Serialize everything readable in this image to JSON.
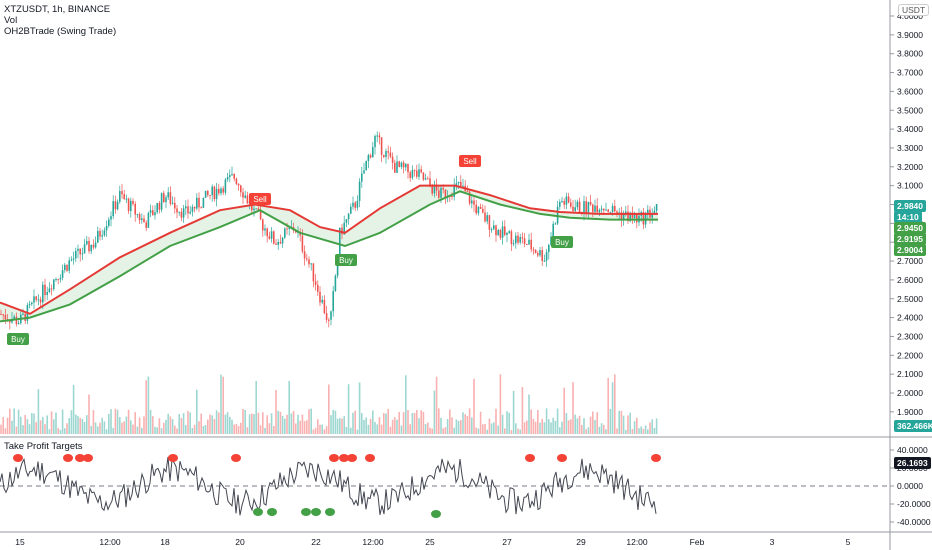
{
  "legend": {
    "symbol_line": "XTZUSDT, 1h, BINANCE",
    "volume_label": "Vol",
    "indicator_label": "OH2BTrade (Swing Trade)"
  },
  "sub_legend": "Take Profit Targets",
  "currency_badge": "USDT",
  "price_axis": {
    "ticks": [
      "4.0000",
      "3.9000",
      "3.8000",
      "3.7000",
      "3.6000",
      "3.5000",
      "3.4000",
      "3.3000",
      "3.2000",
      "3.1000",
      "3.0000",
      "2.9000",
      "2.8000",
      "2.7000",
      "2.6000",
      "2.5000",
      "2.4000",
      "2.3000",
      "2.2000",
      "2.1000",
      "2.0000",
      "1.9000"
    ]
  },
  "oscillator_axis": {
    "ticks": [
      "40.0000",
      "20.0000",
      "0.0000",
      "-20.0000",
      "-40.0000"
    ]
  },
  "time_axis": {
    "labels": [
      "15",
      "12:00",
      "18",
      "20",
      "22",
      "12:00",
      "25",
      "27",
      "29",
      "12:00",
      "Feb",
      "3",
      "5"
    ]
  },
  "price_tags": [
    {
      "text": "2.9840",
      "color": "#26a69a"
    },
    {
      "text": "14:10",
      "color": "#26a69a"
    },
    {
      "text": "2.9450",
      "color": "#26a69a"
    },
    {
      "text": "2.9195",
      "color": "#26a69a"
    },
    {
      "text": "2.9004",
      "color": "#26a69a"
    },
    {
      "text": "362.466K",
      "color": "#26a69a"
    },
    {
      "text": "26.1693",
      "color": "#131722"
    }
  ],
  "signals": [
    {
      "text": "Buy",
      "type": "buy"
    },
    {
      "text": "Sell",
      "type": "sell"
    },
    {
      "text": "Buy",
      "type": "buy"
    },
    {
      "text": "Sell",
      "type": "sell"
    },
    {
      "text": "Buy",
      "type": "buy"
    }
  ],
  "colors": {
    "up": "#26a69a",
    "down": "#ef5350",
    "fast_ma": "#e53935",
    "slow_ma": "#43a047",
    "buy": "#43a047",
    "sell": "#f44336"
  }
}
